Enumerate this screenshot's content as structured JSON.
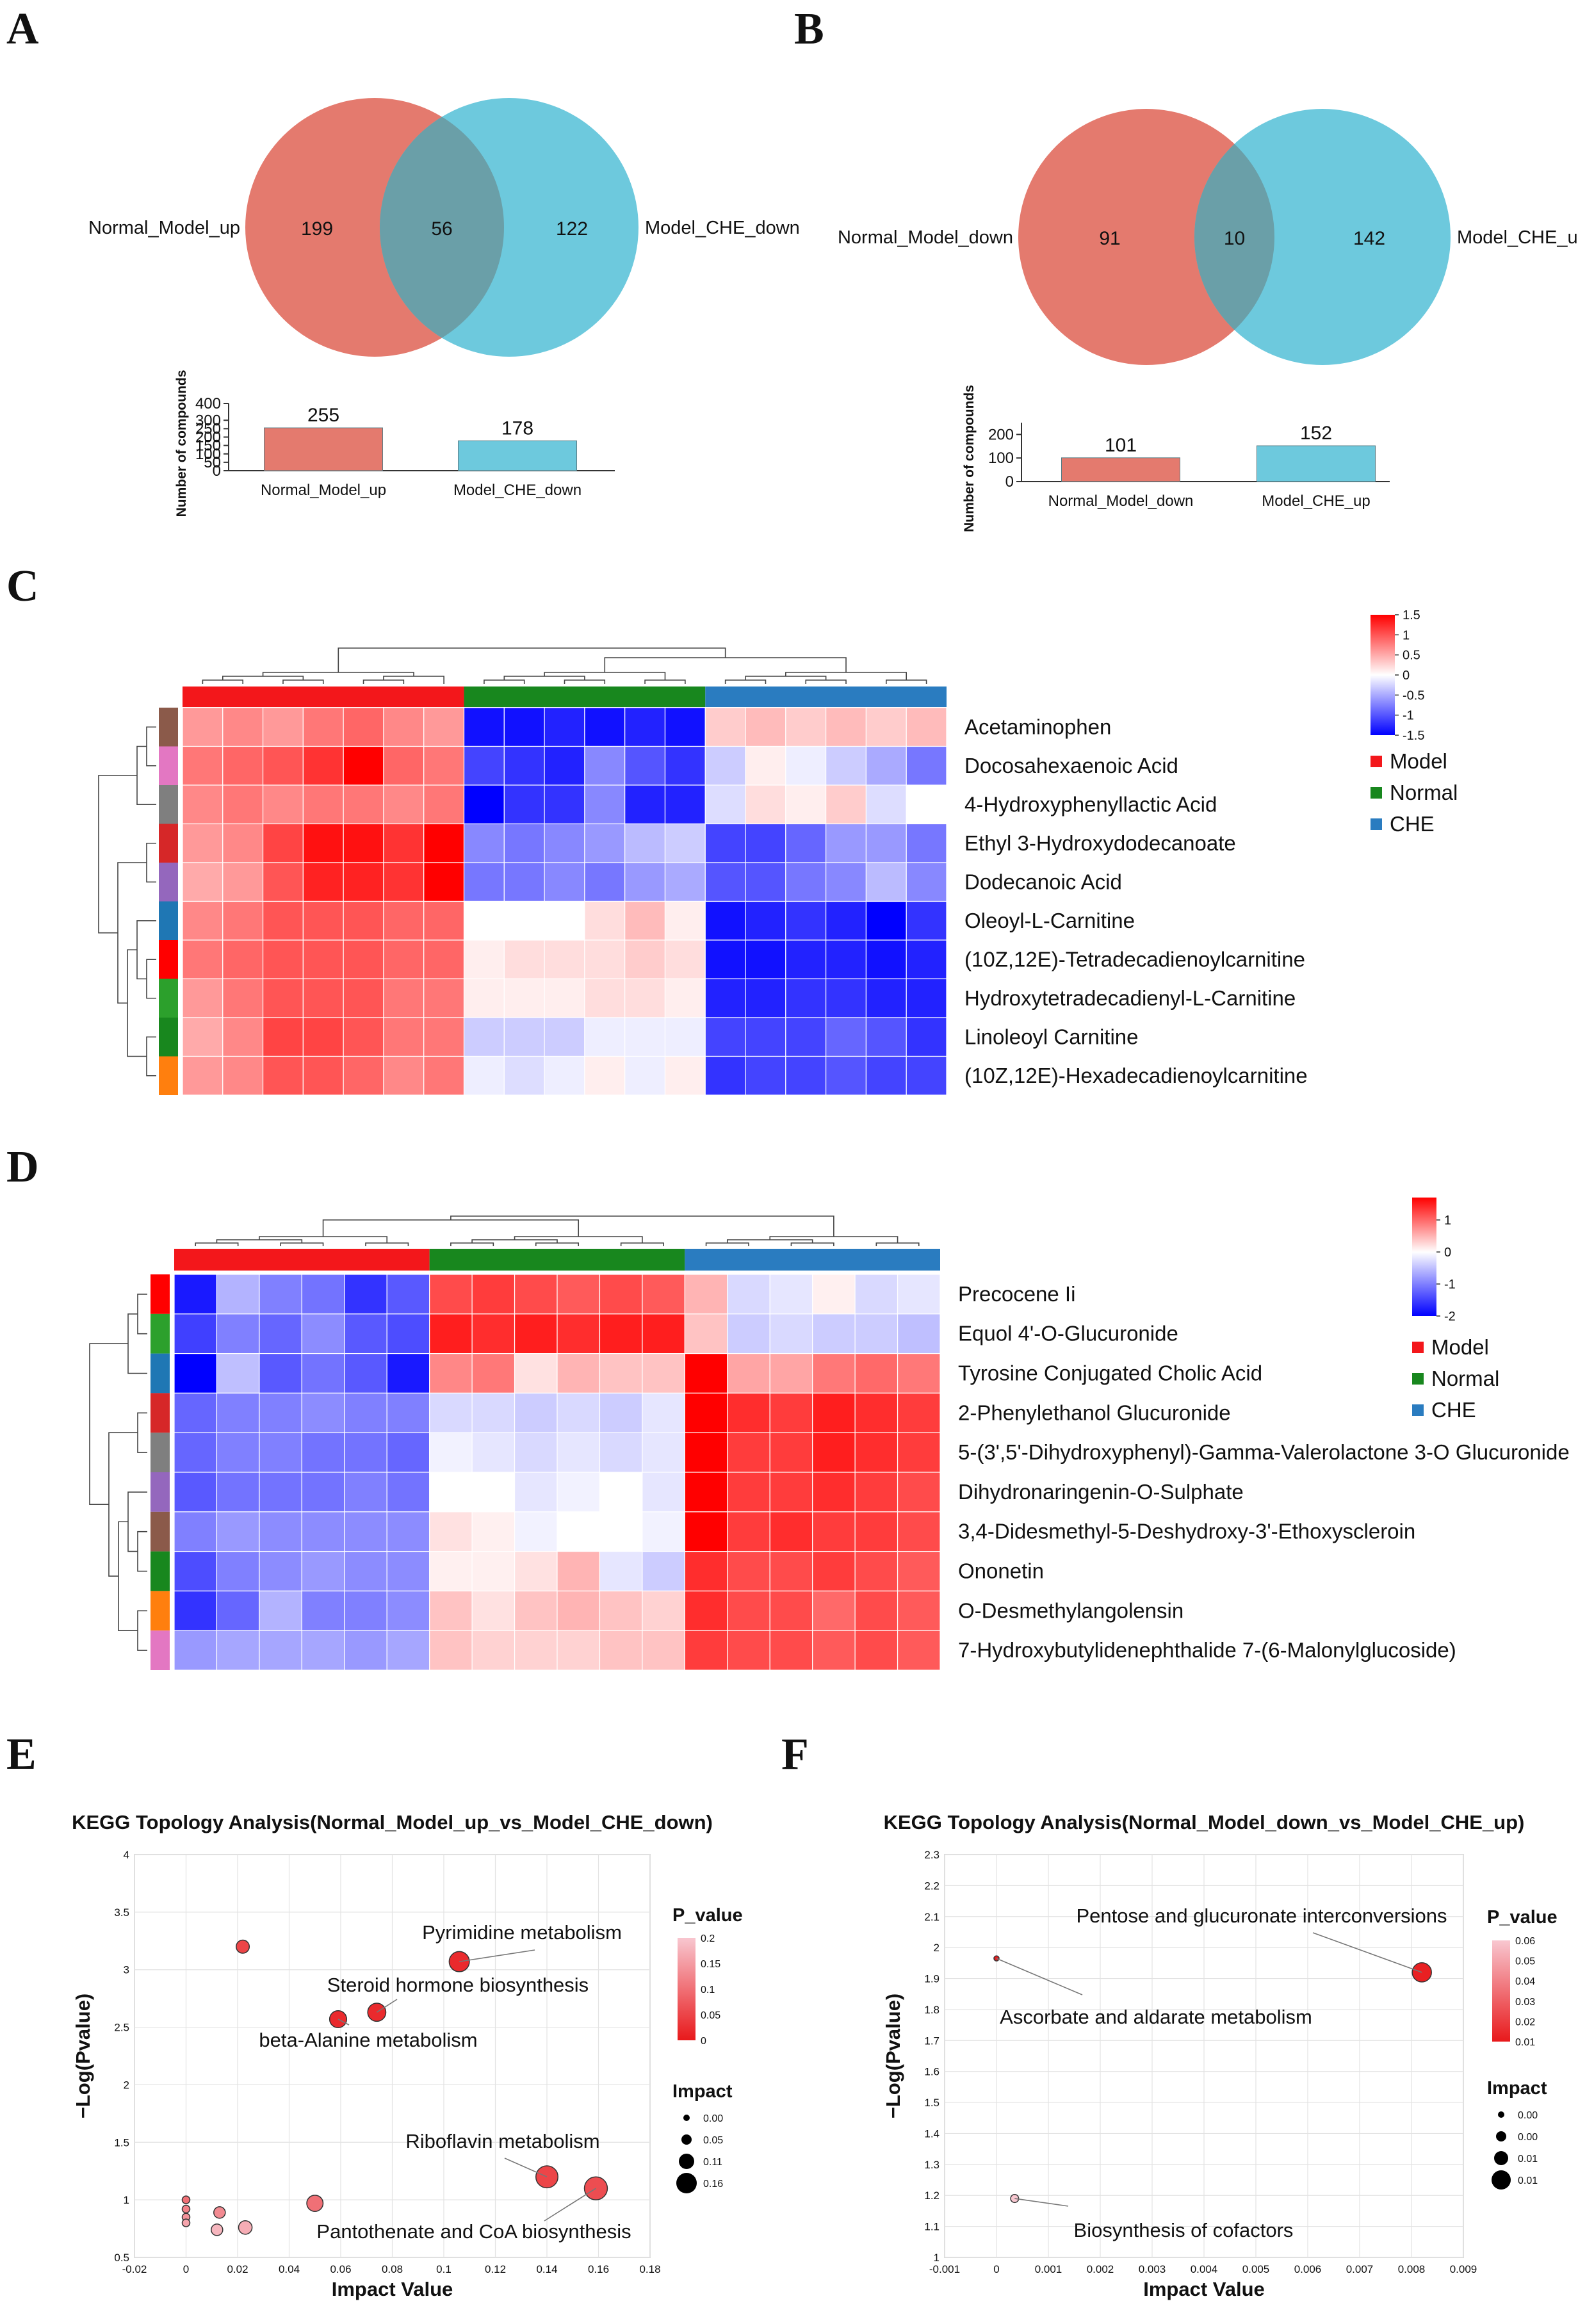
{
  "panel_letters": [
    "A",
    "B",
    "C",
    "D",
    "E",
    "F"
  ],
  "colors": {
    "venn_left": "#E47A6E",
    "venn_right": "#6DC9DD",
    "venn_overlap": "#6A9FA8",
    "model": "#F3171B",
    "normal": "#18871E",
    "che": "#2A7CC0",
    "heat_high": "#FF0000",
    "heat_mid": "#FFFFFF",
    "heat_low": "#0000FF",
    "bubble_dark": "#E8191B",
    "bubble_light": "#F8C7D0"
  },
  "chart_data": [
    {
      "panel": "A",
      "type": "venn",
      "sets": [
        {
          "name": "Normal_Model_up",
          "unique": 199
        },
        {
          "name": "Model_CHE_down",
          "unique": 122
        }
      ],
      "overlap": 56,
      "bar": {
        "type": "bar",
        "ylabel": "Number of compounds",
        "categories": [
          "Normal_Model_up",
          "Model_CHE_down"
        ],
        "values": [
          255,
          178
        ],
        "ylim": [
          0,
          400
        ],
        "yticks": [
          0,
          50,
          100,
          150,
          200,
          250,
          300,
          400
        ]
      }
    },
    {
      "panel": "B",
      "type": "venn",
      "sets": [
        {
          "name": "Normal_Model_down",
          "unique": 91
        },
        {
          "name": "Model_CHE_up",
          "unique": 142
        }
      ],
      "overlap": 10,
      "bar": {
        "type": "bar",
        "ylabel": "Number of compounds",
        "categories": [
          "Normal_Model_down",
          "Model_CHE_up"
        ],
        "values": [
          101,
          152
        ],
        "ylim": [
          0,
          250
        ],
        "yticks": [
          0,
          100,
          200
        ]
      }
    },
    {
      "panel": "C",
      "type": "heatmap",
      "groups": [
        "Model",
        "Normal",
        "CHE"
      ],
      "colorbar": {
        "min": -1.5,
        "max": 1.5,
        "ticks": [
          1.5,
          1,
          0.5,
          0,
          -0.5,
          -1,
          -1.5
        ]
      },
      "rows": [
        "Acetaminophen",
        "Docosahexaenoic Acid",
        "4-Hydroxyphenyllactic Acid",
        "Ethyl 3-Hydroxydodecanoate",
        "Dodecanoic Acid",
        "Oleoyl-L-Carnitine",
        "(10Z,12E)-Tetradecadienoylcarnitine",
        "Hydroxytetradecadienyl-L-Carnitine",
        "Linoleoyl Carnitine",
        "(10Z,12E)-Hexadecadienoylcarnitine"
      ],
      "row_colors": [
        "#8B5A4A",
        "#E377C2",
        "#7F7F7F",
        "#D62728",
        "#9467BD",
        "#1F77B4",
        "#FF0000",
        "#2CA02C",
        "#18871E",
        "#FF7F0E"
      ],
      "values": [
        [
          0.6,
          0.7,
          0.6,
          0.8,
          0.9,
          0.7,
          0.6,
          -1.4,
          -1.4,
          -1.3,
          -1.4,
          -1.3,
          -1.4,
          0.3,
          0.4,
          0.3,
          0.4,
          0.3,
          0.4
        ],
        [
          0.8,
          0.9,
          1.0,
          1.2,
          1.5,
          0.9,
          0.8,
          -1.1,
          -1.2,
          -1.3,
          -0.7,
          -1.0,
          -1.2,
          -0.3,
          0.1,
          -0.1,
          -0.3,
          -0.5,
          -0.8
        ],
        [
          0.7,
          0.8,
          0.7,
          0.8,
          0.8,
          0.7,
          0.8,
          -1.5,
          -1.2,
          -1.2,
          -0.7,
          -1.3,
          -1.3,
          -0.2,
          0.2,
          0.1,
          0.3,
          -0.2,
          0.0
        ],
        [
          0.6,
          0.7,
          1.1,
          1.4,
          1.4,
          1.2,
          1.5,
          -0.7,
          -0.8,
          -0.7,
          -0.6,
          -0.4,
          -0.3,
          -1.1,
          -1.1,
          -0.9,
          -0.6,
          -0.6,
          -0.8
        ],
        [
          0.5,
          0.6,
          1.0,
          1.3,
          1.3,
          1.2,
          1.5,
          -0.8,
          -0.8,
          -0.7,
          -0.8,
          -0.6,
          -0.5,
          -1.0,
          -1.0,
          -0.8,
          -0.7,
          -0.4,
          -0.7
        ],
        [
          0.7,
          0.8,
          1.0,
          1.0,
          1.0,
          0.9,
          0.9,
          0.0,
          0.0,
          0.0,
          0.2,
          0.4,
          0.1,
          -1.4,
          -1.3,
          -1.2,
          -1.3,
          -1.5,
          -1.2
        ],
        [
          0.8,
          0.9,
          1.0,
          1.0,
          1.0,
          0.9,
          0.9,
          0.1,
          0.2,
          0.2,
          0.2,
          0.3,
          0.2,
          -1.4,
          -1.4,
          -1.3,
          -1.3,
          -1.4,
          -1.3
        ],
        [
          0.6,
          0.8,
          1.0,
          1.0,
          1.0,
          0.8,
          0.8,
          0.1,
          0.1,
          0.1,
          0.2,
          0.2,
          0.1,
          -1.3,
          -1.3,
          -1.2,
          -1.2,
          -1.3,
          -1.3
        ],
        [
          0.5,
          0.7,
          1.1,
          1.1,
          1.0,
          0.8,
          0.8,
          -0.3,
          -0.3,
          -0.3,
          -0.1,
          -0.1,
          -0.1,
          -1.1,
          -1.1,
          -1.1,
          -0.9,
          -1.0,
          -1.2
        ],
        [
          0.6,
          0.7,
          1.0,
          1.0,
          0.9,
          0.7,
          0.8,
          -0.1,
          -0.2,
          -0.1,
          0.1,
          -0.1,
          0.1,
          -1.2,
          -1.1,
          -1.1,
          -1.0,
          -1.1,
          -1.1
        ]
      ]
    },
    {
      "panel": "D",
      "type": "heatmap",
      "groups": [
        "Model",
        "Normal",
        "CHE"
      ],
      "colorbar": {
        "min": -2,
        "max": 1.7,
        "ticks": [
          1,
          0,
          -1,
          -2
        ]
      },
      "rows": [
        "Precocene Ii",
        "Equol 4'-O-Glucuronide",
        "Tyrosine Conjugated Cholic Acid",
        "2-Phenylethanol Glucuronide",
        "5-(3',5'-Dihydroxyphenyl)-Gamma-Valerolactone  3-O Glucuronide",
        "Dihydronaringenin-O-Sulphate",
        "3,4-Didesmethyl-5-Deshydroxy-3'-Ethoxyscleroin",
        "Ononetin",
        "O-Desmethylangolensin",
        "7-Hydroxybutylidenephthalide 7-(6-Malonylglucoside)"
      ],
      "row_colors": [
        "#FF0000",
        "#2CA02C",
        "#1F77B4",
        "#D62728",
        "#7F7F7F",
        "#9467BD",
        "#8B5A4A",
        "#18871E",
        "#FF7F0E",
        "#E377C2"
      ],
      "values": [
        [
          -1.8,
          -0.6,
          -1.0,
          -1.1,
          -1.6,
          -1.3,
          1.2,
          1.3,
          1.2,
          1.1,
          1.2,
          1.1,
          0.5,
          -0.3,
          -0.2,
          0.1,
          -0.3,
          -0.2
        ],
        [
          -1.5,
          -1.0,
          -1.2,
          -0.9,
          -1.3,
          -1.4,
          1.5,
          1.4,
          1.5,
          1.4,
          1.5,
          1.5,
          0.4,
          -0.4,
          -0.3,
          -0.4,
          -0.4,
          -0.5
        ],
        [
          -2.0,
          -0.5,
          -1.3,
          -1.1,
          -1.3,
          -1.8,
          0.8,
          0.9,
          0.2,
          0.5,
          0.4,
          0.4,
          1.7,
          0.6,
          0.6,
          0.9,
          1.0,
          0.9
        ],
        [
          -1.2,
          -1.0,
          -1.0,
          -0.9,
          -1.0,
          -1.0,
          -0.3,
          -0.3,
          -0.4,
          -0.3,
          -0.4,
          -0.2,
          1.7,
          1.4,
          1.3,
          1.5,
          1.4,
          1.3
        ],
        [
          -1.2,
          -1.0,
          -1.0,
          -1.1,
          -1.1,
          -1.2,
          -0.1,
          -0.2,
          -0.3,
          -0.2,
          -0.3,
          -0.2,
          1.7,
          1.3,
          1.3,
          1.5,
          1.4,
          1.3
        ],
        [
          -1.3,
          -1.1,
          -1.1,
          -1.1,
          -1.0,
          -1.1,
          0.0,
          0.0,
          -0.2,
          -0.1,
          0.0,
          -0.2,
          1.7,
          1.3,
          1.3,
          1.4,
          1.3,
          1.2
        ],
        [
          -1.0,
          -0.8,
          -0.9,
          -0.9,
          -0.9,
          -0.9,
          0.2,
          0.1,
          -0.1,
          0.0,
          0.0,
          -0.1,
          1.7,
          1.3,
          1.4,
          1.3,
          1.3,
          1.2
        ],
        [
          -1.4,
          -1.0,
          -0.9,
          -0.8,
          -0.9,
          -0.9,
          0.1,
          0.1,
          0.2,
          0.5,
          -0.2,
          -0.4,
          1.4,
          1.2,
          1.2,
          1.3,
          1.2,
          1.1
        ],
        [
          -1.6,
          -1.2,
          -0.6,
          -1.0,
          -1.0,
          -0.9,
          0.4,
          0.2,
          0.4,
          0.5,
          0.4,
          0.3,
          1.4,
          1.2,
          1.2,
          1.0,
          1.2,
          1.1
        ],
        [
          -0.8,
          -0.7,
          -0.7,
          -0.7,
          -0.8,
          -0.7,
          0.4,
          0.3,
          0.3,
          0.3,
          0.4,
          0.4,
          1.3,
          1.2,
          1.2,
          1.1,
          1.2,
          1.1
        ]
      ]
    },
    {
      "panel": "E",
      "type": "scatter",
      "title": "KEGG Topology Analysis(Normal_Model_up_vs_Model_CHE_down)",
      "xlabel": "Impact Value",
      "ylabel": "−Log(Pvalue)",
      "xlim": [
        -0.02,
        0.18
      ],
      "ylim": [
        0.5,
        4
      ],
      "xticks": [
        "-0.02",
        "0",
        "0.02",
        "0.04",
        "0.06",
        "0.08",
        "0.1",
        "0.12",
        "0.14",
        "0.16",
        "0.18"
      ],
      "yticks": [
        "0.5",
        "1",
        "1.5",
        "2",
        "2.5",
        "3",
        "3.5",
        "4"
      ],
      "legend_pvalue_title": "P_value",
      "pvalue_ticks": [
        "0.2",
        "0.15",
        "0.1",
        "0.05",
        "0"
      ],
      "legend_impact_title": "Impact",
      "impact_legend": [
        "0.00",
        "0.05",
        "0.11",
        "0.16"
      ],
      "points": [
        {
          "x": 0.022,
          "y": 3.2,
          "impact": 0.02,
          "p": 0.05
        },
        {
          "x": 0.106,
          "y": 3.07,
          "impact": 0.106,
          "p": 0.02,
          "label": "Pyrimidine metabolism"
        },
        {
          "x": 0.074,
          "y": 2.63,
          "impact": 0.074,
          "p": 0.02,
          "label": "Steroid hormone biosynthesis"
        },
        {
          "x": 0.059,
          "y": 2.57,
          "impact": 0.059,
          "p": 0.02,
          "label": "beta-Alanine metabolism"
        },
        {
          "x": 0.14,
          "y": 1.2,
          "impact": 0.14,
          "p": 0.05,
          "label": "Riboflavin metabolism"
        },
        {
          "x": 0.159,
          "y": 1.1,
          "impact": 0.159,
          "p": 0.06,
          "label": "Pantothenate and CoA biosynthesis"
        },
        {
          "x": 0.05,
          "y": 0.97,
          "impact": 0.05,
          "p": 0.1
        },
        {
          "x": 0.023,
          "y": 0.76,
          "impact": 0.023,
          "p": 0.17
        },
        {
          "x": 0.013,
          "y": 0.89,
          "impact": 0.01,
          "p": 0.13
        },
        {
          "x": 0.012,
          "y": 0.74,
          "impact": 0.01,
          "p": 0.18
        },
        {
          "x": 0.0,
          "y": 1.0,
          "impact": 0.0,
          "p": 0.1
        },
        {
          "x": 0.0,
          "y": 0.92,
          "impact": 0.0,
          "p": 0.12
        },
        {
          "x": 0.0,
          "y": 0.85,
          "impact": 0.0,
          "p": 0.14
        },
        {
          "x": 0.0,
          "y": 0.8,
          "impact": 0.0,
          "p": 0.16
        }
      ]
    },
    {
      "panel": "F",
      "type": "scatter",
      "title": "KEGG Topology Analysis(Normal_Model_down_vs_Model_CHE_up)",
      "xlabel": "Impact Value",
      "ylabel": "−Log(Pvalue)",
      "xlim": [
        -0.001,
        0.009
      ],
      "ylim": [
        1,
        2.3
      ],
      "xticks": [
        "-0.001",
        "0",
        "0.001",
        "0.002",
        "0.003",
        "0.004",
        "0.005",
        "0.006",
        "0.007",
        "0.008",
        "0.009"
      ],
      "yticks": [
        "1",
        "1.1",
        "1.2",
        "1.3",
        "1.4",
        "1.5",
        "1.6",
        "1.7",
        "1.8",
        "1.9",
        "2",
        "2.1",
        "2.2",
        "2.3"
      ],
      "legend_pvalue_title": "P_value",
      "pvalue_ticks": [
        "0.06",
        "0.05",
        "0.04",
        "0.03",
        "0.02",
        "0.01"
      ],
      "legend_impact_title": "Impact",
      "impact_legend": [
        "0.00",
        "0.00",
        "0.01",
        "0.01"
      ],
      "points": [
        {
          "x": 0.0082,
          "y": 1.92,
          "impact": 0.0082,
          "p": 0.012,
          "label": "Pentose and glucuronate interconversions"
        },
        {
          "x": 0.0,
          "y": 1.965,
          "impact": 0.0,
          "p": 0.011,
          "label": "Ascorbate and aldarate metabolism"
        },
        {
          "x": 0.00035,
          "y": 1.19,
          "impact": 0.00035,
          "p": 0.065,
          "label": "Biosynthesis of cofactors"
        }
      ]
    }
  ]
}
